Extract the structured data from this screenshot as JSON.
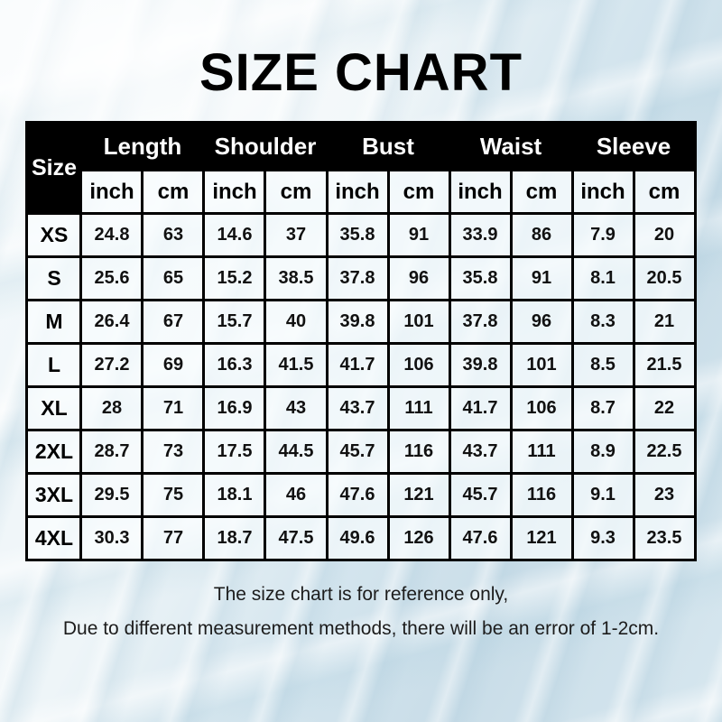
{
  "title": "SIZE CHART",
  "chart_data": {
    "type": "table",
    "title": "SIZE CHART",
    "row_header": "Size",
    "column_groups": [
      "Length",
      "Shoulder",
      "Bust",
      "Waist",
      "Sleeve"
    ],
    "unit_labels": {
      "inch": "inch",
      "cm": "cm"
    },
    "rows": [
      {
        "size": "XS",
        "values": [
          "24.8",
          "63",
          "14.6",
          "37",
          "35.8",
          "91",
          "33.9",
          "86",
          "7.9",
          "20"
        ]
      },
      {
        "size": "S",
        "values": [
          "25.6",
          "65",
          "15.2",
          "38.5",
          "37.8",
          "96",
          "35.8",
          "91",
          "8.1",
          "20.5"
        ]
      },
      {
        "size": "M",
        "values": [
          "26.4",
          "67",
          "15.7",
          "40",
          "39.8",
          "101",
          "37.8",
          "96",
          "8.3",
          "21"
        ]
      },
      {
        "size": "L",
        "values": [
          "27.2",
          "69",
          "16.3",
          "41.5",
          "41.7",
          "106",
          "39.8",
          "101",
          "8.5",
          "21.5"
        ]
      },
      {
        "size": "XL",
        "values": [
          "28",
          "71",
          "16.9",
          "43",
          "43.7",
          "111",
          "41.7",
          "106",
          "8.7",
          "22"
        ]
      },
      {
        "size": "2XL",
        "values": [
          "28.7",
          "73",
          "17.5",
          "44.5",
          "45.7",
          "116",
          "43.7",
          "111",
          "8.9",
          "22.5"
        ]
      },
      {
        "size": "3XL",
        "values": [
          "29.5",
          "75",
          "18.1",
          "46",
          "47.6",
          "121",
          "45.7",
          "116",
          "9.1",
          "23"
        ]
      },
      {
        "size": "4XL",
        "values": [
          "30.3",
          "77",
          "18.7",
          "47.5",
          "49.6",
          "126",
          "47.6",
          "121",
          "9.3",
          "23.5"
        ]
      }
    ],
    "annotations": [
      "The size chart is for reference only,",
      "Due to different measurement methods, there will be an error of 1-2cm."
    ]
  },
  "footer": {
    "line1": "The size chart is for reference only,",
    "line2": "Due to different measurement methods, there will be an error of 1-2cm."
  },
  "colors": {
    "header_bg": "#000000",
    "header_text": "#ffffff",
    "body_text": "#000000",
    "grid_line": "#000000",
    "cell_bg": "#f8fcfe",
    "background_tint": "#cfe2ec"
  }
}
